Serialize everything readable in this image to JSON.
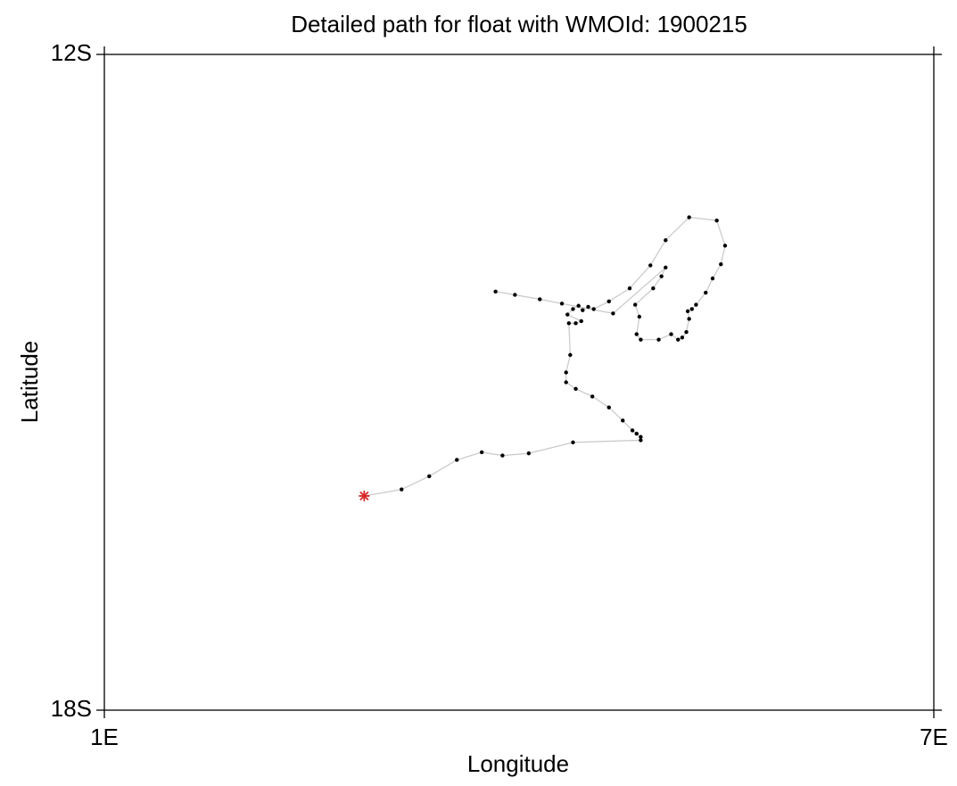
{
  "chart_data": {
    "type": "line",
    "title": "Detailed path for float with WMOId: 1900215",
    "x_label": "Longitude",
    "y_label": "Latitude",
    "xlim": [
      1,
      7
    ],
    "xticks": [
      {
        "value": 1,
        "label": "1E"
      },
      {
        "value": 7,
        "label": "7E"
      }
    ],
    "ylim": [
      -18,
      -12
    ],
    "yticks": [
      {
        "value": -18,
        "label": "18S"
      },
      {
        "value": -12,
        "label": "12S"
      }
    ],
    "line_color": "#c8c8c8",
    "marker_color": "#000000",
    "start_color": "#d62728",
    "x": [
      2.88,
      3.15,
      3.35,
      3.55,
      3.73,
      3.88,
      4.07,
      4.39,
      4.88,
      4.88,
      4.85,
      4.82,
      4.75,
      4.65,
      4.53,
      4.41,
      4.34,
      4.34,
      4.37,
      4.36,
      4.41,
      4.45,
      4.35,
      4.39,
      4.43,
      4.46,
      4.5,
      4.54,
      4.65,
      4.8,
      4.95,
      5.06,
      5.23,
      5.43,
      5.49,
      5.46,
      5.4,
      5.35,
      5.28,
      5.25,
      5.22,
      5.23,
      5.21,
      5.18,
      5.15,
      5.1,
      5.01,
      4.88,
      4.85,
      4.87,
      4.84,
      4.97,
      5.03,
      5.06,
      4.68,
      4.31,
      4.15,
      3.97,
      3.83
    ],
    "y": [
      -16.04,
      -15.98,
      -15.86,
      -15.71,
      -15.64,
      -15.67,
      -15.65,
      -15.55,
      -15.53,
      -15.5,
      -15.47,
      -15.44,
      -15.35,
      -15.23,
      -15.13,
      -15.06,
      -15.0,
      -14.91,
      -14.75,
      -14.46,
      -14.46,
      -14.44,
      -14.38,
      -14.33,
      -14.3,
      -14.34,
      -14.31,
      -14.33,
      -14.26,
      -14.14,
      -13.93,
      -13.7,
      -13.49,
      -13.52,
      -13.75,
      -13.92,
      -14.05,
      -14.18,
      -14.29,
      -14.33,
      -14.35,
      -14.42,
      -14.54,
      -14.59,
      -14.61,
      -14.56,
      -14.61,
      -14.61,
      -14.56,
      -14.4,
      -14.29,
      -14.14,
      -14.03,
      -13.95,
      -14.37,
      -14.28,
      -14.24,
      -14.2,
      -14.17
    ]
  }
}
